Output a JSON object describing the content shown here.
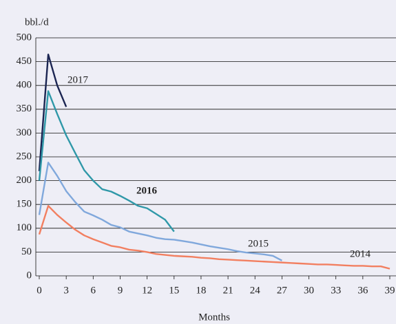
{
  "chart_data": {
    "type": "line",
    "y_axis_label": "bbl./d",
    "x_axis_label": "Months",
    "xlim": [
      0,
      39
    ],
    "xticks": [
      0,
      3,
      6,
      9,
      12,
      15,
      18,
      21,
      24,
      27,
      30,
      33,
      36,
      39
    ],
    "ylim": [
      0,
      500
    ],
    "yticks": [
      0,
      50,
      100,
      150,
      200,
      250,
      300,
      350,
      400,
      450,
      500
    ],
    "grid": true,
    "series": [
      {
        "name": "2017",
        "color": "#1b2552",
        "x": [
          0,
          1,
          2,
          3
        ],
        "values": [
          220,
          465,
          400,
          355
        ]
      },
      {
        "name": "2016",
        "color": "#2f98a8",
        "x": [
          0,
          1,
          2,
          3,
          4,
          5,
          6,
          7,
          8,
          9,
          10,
          11,
          12,
          13,
          14,
          15
        ],
        "values": [
          200,
          388,
          340,
          295,
          258,
          222,
          200,
          182,
          177,
          168,
          158,
          147,
          142,
          130,
          118,
          93
        ]
      },
      {
        "name": "2015",
        "color": "#80a8dc",
        "x": [
          0,
          1,
          2,
          3,
          4,
          5,
          6,
          7,
          8,
          9,
          10,
          11,
          12,
          13,
          14,
          15,
          16,
          17,
          18,
          19,
          20,
          21,
          22,
          23,
          24,
          25,
          26,
          27
        ],
        "values": [
          128,
          238,
          210,
          178,
          155,
          135,
          127,
          118,
          107,
          102,
          93,
          89,
          85,
          80,
          77,
          76,
          73,
          70,
          66,
          62,
          59,
          56,
          52,
          49,
          47,
          45,
          42,
          32
        ]
      },
      {
        "name": "2014",
        "color": "#f27f60",
        "x": [
          0,
          1,
          2,
          3,
          4,
          5,
          6,
          7,
          8,
          9,
          10,
          11,
          12,
          13,
          14,
          15,
          16,
          17,
          18,
          19,
          20,
          21,
          22,
          23,
          24,
          25,
          26,
          27,
          28,
          29,
          30,
          31,
          32,
          33,
          34,
          35,
          36,
          37,
          38,
          39
        ],
        "values": [
          87,
          147,
          128,
          112,
          97,
          85,
          77,
          70,
          63,
          60,
          55,
          53,
          50,
          46,
          44,
          42,
          41,
          40,
          38,
          37,
          35,
          34,
          33,
          32,
          31,
          30,
          29,
          28,
          27,
          26,
          25,
          24,
          24,
          23,
          22,
          21,
          21,
          20,
          20,
          15
        ]
      }
    ]
  }
}
